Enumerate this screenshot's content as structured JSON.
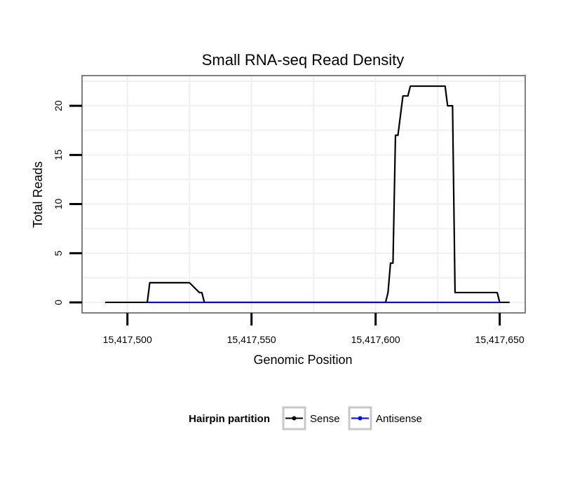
{
  "chart_data": {
    "type": "line",
    "title": "Small RNA-seq Read Density",
    "xlabel": "Genomic Position",
    "ylabel": "Total Reads",
    "xlim": [
      15417482,
      15417660
    ],
    "ylim": [
      -1,
      23
    ],
    "x_ticks": [
      15417500,
      15417550,
      15417600,
      15417650
    ],
    "x_tick_labels": [
      "15,417,500",
      "15,417,550",
      "15,417,600",
      "15,417,650"
    ],
    "y_ticks": [
      0,
      5,
      10,
      15,
      20
    ],
    "y_tick_labels": [
      "0",
      "5",
      "10",
      "15",
      "20"
    ],
    "grid": true,
    "legend": {
      "title": "Hairpin partition",
      "position": "bottom"
    },
    "series": [
      {
        "name": "Sense",
        "color": "#000000",
        "x": [
          15417491,
          15417508,
          15417509,
          15417525,
          15417529,
          15417530,
          15417531,
          15417604,
          15417605,
          15417606,
          15417607,
          15417608,
          15417609,
          15417610,
          15417611,
          15417612,
          15417613,
          15417614,
          15417615,
          15417616,
          15417617,
          15417618,
          15417619,
          15417620,
          15417621,
          15417622,
          15417623,
          15417624,
          15417625,
          15417626,
          15417627,
          15417628,
          15417629,
          15417630,
          15417631,
          15417632,
          15417633,
          15417634,
          15417635,
          15417636,
          15417637,
          15417638,
          15417639,
          15417640,
          15417641,
          15417642,
          15417643,
          15417644,
          15417645,
          15417646,
          15417647,
          15417648,
          15417649,
          15417650,
          15417654
        ],
        "y": [
          0,
          0,
          2,
          2,
          1,
          1,
          0,
          0,
          1,
          4,
          4,
          17,
          17,
          19,
          21,
          21,
          21,
          22,
          22,
          22,
          22,
          22,
          22,
          22,
          22,
          22,
          22,
          22,
          22,
          22,
          22,
          22,
          20,
          20,
          20,
          1,
          1,
          1,
          1,
          1,
          1,
          1,
          1,
          1,
          1,
          1,
          1,
          1,
          1,
          1,
          1,
          1,
          1,
          0,
          0
        ]
      },
      {
        "name": "Antisense",
        "color": "#0000ff",
        "x": [
          15417508,
          15417650
        ],
        "y": [
          0,
          0
        ]
      }
    ]
  }
}
